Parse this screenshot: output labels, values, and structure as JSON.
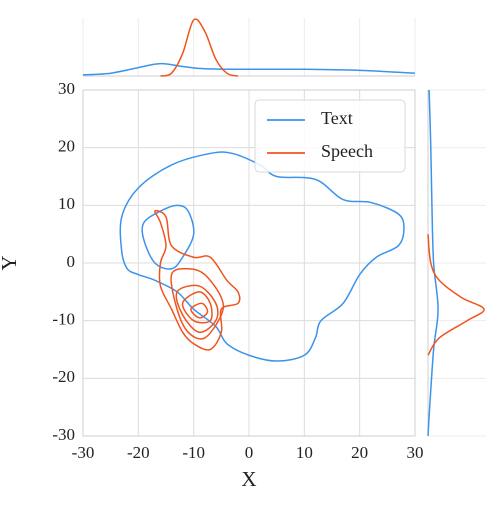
{
  "chart_data": {
    "type": "kde",
    "xlabel": "X",
    "ylabel": "Y",
    "xlim": [
      -30,
      30
    ],
    "ylim": [
      -30,
      30
    ],
    "xticks": [
      -30,
      -20,
      -10,
      0,
      10,
      20,
      30
    ],
    "yticks": [
      -30,
      -20,
      -10,
      0,
      10,
      20,
      30
    ],
    "grid": true,
    "legend": "upper right",
    "series": [
      {
        "name": "Text",
        "color": "#3b94ec",
        "contours": [
          {
            "x": [
              -23,
              -23,
              -20,
              -14,
              -7,
              -3,
              2,
              5,
              12,
              17,
              22,
              27,
              28,
              27,
              23,
              20,
              17,
              13,
              12,
              10,
              5,
              0,
              -4,
              -6,
              -10,
              -13,
              -17,
              -20,
              -22
            ],
            "y": [
              2,
              8,
              13,
              17,
              19,
              19,
              17,
              15,
              14.5,
              11,
              10.5,
              8.5,
              6,
              3,
              1,
              -2,
              -7,
              -10,
              -13,
              -16,
              -17,
              -16,
              -14,
              -11,
              -8,
              -5,
              -3,
              -2,
              -1
            ]
          },
          {
            "x": [
              -19,
              -19,
              -16,
              -13,
              -11,
              -10,
              -12,
              -14,
              -17
            ],
            "y": [
              4,
              7,
              9,
              10,
              9,
              5,
              1,
              -1,
              0
            ]
          }
        ],
        "x_marginal": {
          "x": [
            -30,
            -25,
            -20,
            -16,
            -12,
            -8,
            0,
            10,
            20,
            30
          ],
          "density": [
            0.02,
            0.05,
            0.15,
            0.22,
            0.17,
            0.13,
            0.12,
            0.12,
            0.1,
            0.05
          ]
        },
        "y_marginal": {
          "y": [
            30,
            20,
            10,
            0,
            -8,
            -15,
            -25,
            -30
          ],
          "density": [
            0.02,
            0.05,
            0.07,
            0.1,
            0.18,
            0.1,
            0.03,
            0
          ]
        }
      },
      {
        "name": "Speech",
        "color": "#f0541e",
        "contours": [
          {
            "x": [
              -17,
              -16,
              -15,
              -16,
              -16,
              -14,
              -12,
              -10,
              -7,
              -5,
              -5,
              -2,
              -2,
              -4,
              -7,
              -10,
              -14,
              -15
            ],
            "y": [
              9,
              7,
              3,
              0,
              -4,
              -8,
              -12,
              -14,
              -15,
              -12,
              -8,
              -7,
              -5,
              -3,
              1,
              1,
              3,
              8
            ]
          },
          {
            "x": [
              -14,
              -13,
              -11,
              -8,
              -5,
              -5,
              -8,
              -11
            ],
            "y": [
              -2,
              -8,
              -12,
              -13,
              -9,
              -6,
              -2,
              -1
            ]
          },
          {
            "x": [
              -13,
              -12,
              -9,
              -6,
              -6,
              -9
            ],
            "y": [
              -5,
              -9,
              -12,
              -10,
              -7,
              -4
            ]
          },
          {
            "x": [
              -12,
              -10,
              -7,
              -7,
              -9
            ],
            "y": [
              -7,
              -10,
              -10,
              -7,
              -5
            ]
          },
          {
            "x": [
              -10.5,
              -9,
              -7.5,
              -8.5
            ],
            "y": [
              -8,
              -9.5,
              -8.5,
              -7
            ]
          }
        ],
        "x_marginal": {
          "x": [
            -16,
            -14,
            -12,
            -10,
            -8,
            -6,
            -4,
            -2
          ],
          "density": [
            0,
            0.05,
            0.4,
            1.0,
            0.8,
            0.3,
            0.05,
            0
          ]
        },
        "y_marginal": {
          "y": [
            5,
            0,
            -3,
            -6,
            -8,
            -10,
            -13,
            -16
          ],
          "density": [
            0,
            0.05,
            0.2,
            0.6,
            1.0,
            0.7,
            0.2,
            0
          ]
        }
      }
    ]
  }
}
